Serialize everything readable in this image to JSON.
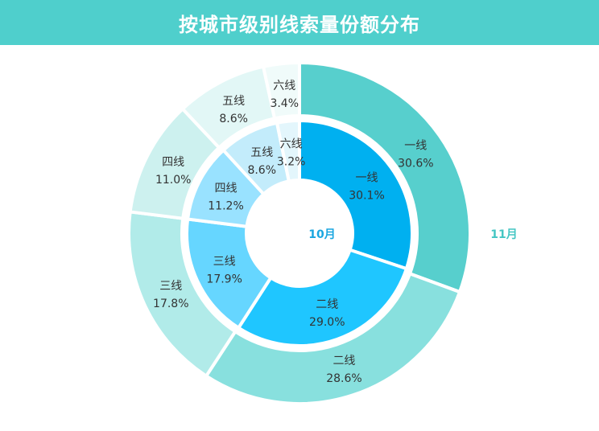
{
  "title": "按城市级别线索量份额分布",
  "colors": {
    "header_bg": "#4fcfcc",
    "inner_labels_color": "#1aa6e0",
    "outer_label_color": "#44c6c3"
  },
  "chart_data": {
    "type": "pie",
    "title": "按城市级别线索量份额分布",
    "series": [
      {
        "name": "10月",
        "ring": "inner",
        "categories": [
          "一线",
          "二线",
          "三线",
          "四线",
          "五线",
          "六线"
        ],
        "values": [
          30.1,
          29.0,
          17.9,
          11.2,
          8.6,
          3.2
        ],
        "labels": [
          "30.1%",
          "29.0%",
          "17.9%",
          "11.2%",
          "8.6%",
          "3.2%"
        ],
        "colors": [
          "#00b0f0",
          "#1fc6ff",
          "#66d6ff",
          "#99e2ff",
          "#c3ecfb",
          "#e3f6fc"
        ]
      },
      {
        "name": "11月",
        "ring": "outer",
        "categories": [
          "一线",
          "二线",
          "三线",
          "四线",
          "五线",
          "六线"
        ],
        "values": [
          30.6,
          28.6,
          17.8,
          11.0,
          8.6,
          3.4
        ],
        "labels": [
          "30.6%",
          "28.6%",
          "17.8%",
          "11.0%",
          "8.6%",
          "3.4%"
        ],
        "colors": [
          "#57cfcd",
          "#88e0de",
          "#b1ebe9",
          "#cdf1ef",
          "#e2f7f6",
          "#f0fbfa"
        ]
      }
    ]
  }
}
